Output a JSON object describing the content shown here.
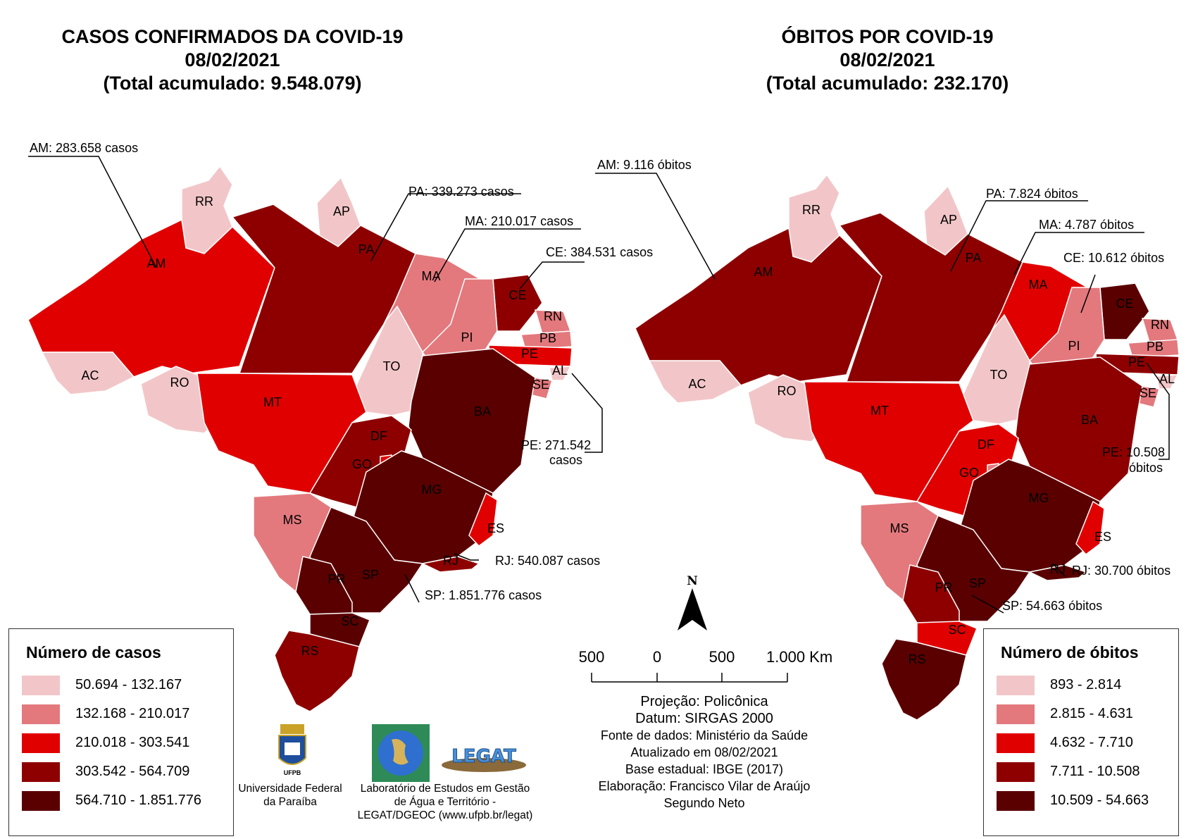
{
  "titles": {
    "cases": {
      "line1": "CASOS CONFIRMADOS DA COVID-19",
      "line2": "08/02/2021",
      "line3": "(Total acumulado: 9.548.079)"
    },
    "deaths": {
      "line1": "ÓBITOS POR COVID-19",
      "line2": "08/02/2021",
      "line3": "(Total acumulado: 232.170)"
    }
  },
  "colors": {
    "c1": "#f2c6c8",
    "c2": "#e3797d",
    "c3": "#e10000",
    "c4": "#8e0000",
    "c5": "#5a0000"
  },
  "states": [
    "RR",
    "AP",
    "AM",
    "PA",
    "MA",
    "CE",
    "RN",
    "PB",
    "PE",
    "AL",
    "SE",
    "PI",
    "TO",
    "BA",
    "AC",
    "RO",
    "MT",
    "GO",
    "DF",
    "MG",
    "ES",
    "MS",
    "SP",
    "RJ",
    "PR",
    "SC",
    "RS"
  ],
  "cases_class": {
    "RR": "c1",
    "AP": "c1",
    "AM": "c3",
    "PA": "c4",
    "MA": "c2",
    "CE": "c4",
    "RN": "c2",
    "PB": "c2",
    "PE": "c3",
    "AL": "c1",
    "SE": "c2",
    "PI": "c2",
    "TO": "c1",
    "BA": "c5",
    "AC": "c1",
    "RO": "c1",
    "MT": "c3",
    "GO": "c4",
    "DF": "c3",
    "MG": "c5",
    "ES": "c3",
    "MS": "c2",
    "SP": "c5",
    "RJ": "c4",
    "PR": "c5",
    "SC": "c5",
    "RS": "c4"
  },
  "deaths_class": {
    "RR": "c1",
    "AP": "c1",
    "AM": "c4",
    "PA": "c4",
    "MA": "c3",
    "CE": "c5",
    "RN": "c2",
    "PB": "c2",
    "PE": "c4",
    "AL": "c1",
    "SE": "c2",
    "PI": "c2",
    "TO": "c1",
    "BA": "c4",
    "AC": "c1",
    "RO": "c1",
    "MT": "c3",
    "GO": "c3",
    "DF": "c2",
    "MG": "c5",
    "ES": "c3",
    "MS": "c2",
    "SP": "c5",
    "RJ": "c5",
    "PR": "c4",
    "SC": "c3",
    "RS": "c5"
  },
  "cases_callouts": {
    "AM": "AM: 283.658 casos",
    "PA": "PA: 339.273 casos",
    "MA": "MA: 210.017 casos",
    "CE": "CE: 384.531 casos",
    "PE1": "PE: 271.542",
    "PE2": "casos",
    "RJ": "RJ: 540.087 casos",
    "SP": "SP: 1.851.776 casos"
  },
  "deaths_callouts": {
    "AM": "AM: 9.116 óbitos",
    "PA": "PA: 7.824 óbitos",
    "MA": "MA: 4.787 óbitos",
    "CE": "CE: 10.612 óbitos",
    "PE1": "PE: 10.508",
    "PE2": "óbitos",
    "RJ": "RJ: 30.700 óbitos",
    "SP": "SP: 54.663 óbitos"
  },
  "legend_cases": {
    "title": "Número de casos",
    "ranges": [
      "50.694 - 132.167",
      "132.168 - 210.017",
      "210.018 - 303.541",
      "303.542 - 564.709",
      "564.710 - 1.851.776"
    ]
  },
  "legend_deaths": {
    "title": "Número de óbitos",
    "ranges": [
      "893 - 2.814",
      "2.815 - 4.631",
      "4.632 - 7.710",
      "7.711 - 10.508",
      "10.509 - 54.663"
    ]
  },
  "north_arrow": "N",
  "scale_bar": {
    "labels": [
      "500",
      "0",
      "500",
      "1.000 Km"
    ]
  },
  "credits": {
    "projection": "Projeção: Policônica",
    "datum": "Datum: SIRGAS 2000",
    "source": "Fonte de dados: Ministério da Saúde",
    "updated": "Atualizado em 08/02/2021",
    "base": "Base estadual: IBGE (2017)",
    "author1": "Elaboração: Francisco Vilar de Araújo",
    "author2": "Segundo Neto"
  },
  "logos": {
    "ufpb_text": "UFPB",
    "ufpb_caption1": "Universidade Federal",
    "ufpb_caption2": "da Paraíba",
    "legat_text": "LEGAT",
    "legat_caption1": "Laboratório de Estudos em Gestão",
    "legat_caption2": "de Água e Território -",
    "legat_caption3": "LEGAT/DGEOC (www.ufpb.br/legat)"
  }
}
